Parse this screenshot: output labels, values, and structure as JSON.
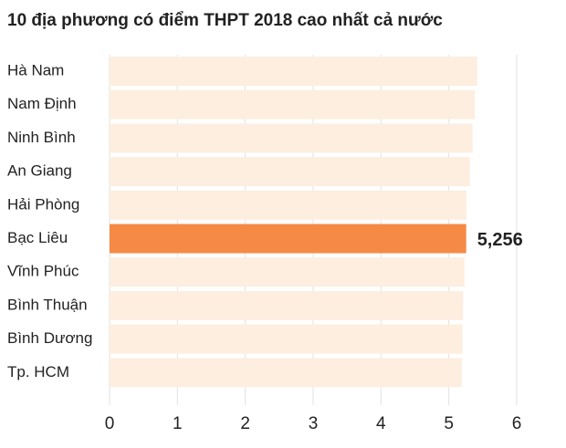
{
  "chart_data": {
    "type": "barh",
    "title": "10 địa phương có điểm THPT 2018 cao nhất cả nước",
    "categories": [
      "Hà Nam",
      "Nam Định",
      "Ninh Bình",
      "An Giang",
      "Hải Phòng",
      "Bạc Liêu",
      "Vĩnh Phúc",
      "Bình Thuận",
      "Bình Dương",
      "Tp. HCM"
    ],
    "values": [
      5.42,
      5.38,
      5.35,
      5.31,
      5.26,
      5.256,
      5.23,
      5.21,
      5.2,
      5.19
    ],
    "value_labels": [
      null,
      null,
      null,
      null,
      null,
      "5,256",
      null,
      null,
      null,
      null
    ],
    "colors": [
      "#fdeee0",
      "#fdeee0",
      "#fdeee0",
      "#fdeee0",
      "#fdeee0",
      "#f58a45",
      "#fdeee0",
      "#fdeee0",
      "#fdeee0",
      "#fdeee0"
    ],
    "xlim": [
      0,
      6
    ],
    "xticks": [
      0,
      1,
      2,
      3,
      4,
      5,
      6
    ],
    "grid": true
  }
}
